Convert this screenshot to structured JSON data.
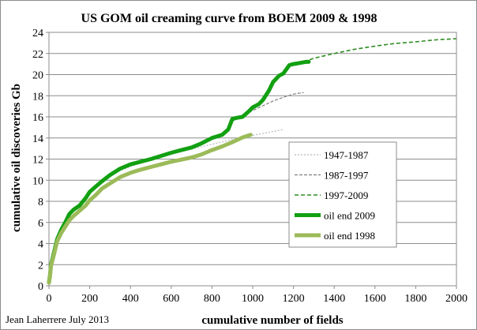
{
  "chart_data": {
    "type": "line",
    "title": "US GOM oil creaming curve from BOEM 2009 & 1998",
    "xlabel": "cumulative number of fields",
    "ylabel": "cumulative oil discoveries Gb",
    "xlim": [
      0,
      2000
    ],
    "ylim": [
      0,
      24
    ],
    "x_ticks": [
      0,
      200,
      400,
      600,
      800,
      1000,
      1200,
      1400,
      1600,
      1800,
      2000
    ],
    "y_ticks": [
      0,
      2,
      4,
      6,
      8,
      10,
      12,
      14,
      16,
      18,
      20,
      22,
      24
    ],
    "grid": "horizontal",
    "legend_position": "bottom-right",
    "credit": "Jean Laherrere July 2013",
    "series": [
      {
        "name": "1947-1987",
        "style": "dotted",
        "color": "#b8b8b8",
        "x": [
          300,
          400,
          500,
          600,
          700,
          800,
          900,
          1000,
          1100,
          1150
        ],
        "y": [
          10.5,
          11.3,
          11.95,
          12.5,
          12.95,
          13.4,
          13.85,
          14.25,
          14.6,
          14.8
        ]
      },
      {
        "name": "1987-1997",
        "style": "dashed",
        "color": "#7f7f7f",
        "x": [
          900,
          950,
          1000,
          1050,
          1100,
          1150,
          1200,
          1250
        ],
        "y": [
          15.6,
          16.1,
          16.6,
          17.05,
          17.5,
          17.85,
          18.15,
          18.3
        ]
      },
      {
        "name": "1997-2009",
        "style": "dashed",
        "color": "#2e8b22",
        "x": [
          1250,
          1300,
          1400,
          1500,
          1600,
          1700,
          1800,
          1900,
          2000
        ],
        "y": [
          21.2,
          21.55,
          22.0,
          22.4,
          22.7,
          22.95,
          23.1,
          23.3,
          23.4
        ]
      },
      {
        "name": "oil end 2009",
        "style": "thick",
        "color": "#12a012",
        "x": [
          0,
          5,
          10,
          20,
          40,
          60,
          80,
          100,
          120,
          150,
          180,
          200,
          230,
          260,
          300,
          350,
          400,
          450,
          500,
          550,
          600,
          650,
          700,
          750,
          800,
          850,
          880,
          900,
          920,
          950,
          980,
          1000,
          1030,
          1050,
          1080,
          1100,
          1130,
          1150,
          1180,
          1200,
          1230,
          1260,
          1275
        ],
        "y": [
          0.3,
          1.0,
          2.0,
          2.8,
          4.4,
          5.3,
          6.0,
          6.8,
          7.2,
          7.6,
          8.3,
          8.9,
          9.4,
          9.9,
          10.5,
          11.1,
          11.5,
          11.75,
          12.0,
          12.3,
          12.6,
          12.85,
          13.1,
          13.5,
          14.0,
          14.3,
          14.8,
          15.8,
          15.9,
          16.0,
          16.5,
          16.9,
          17.2,
          17.6,
          18.5,
          19.3,
          19.9,
          20.1,
          20.9,
          21.0,
          21.1,
          21.2,
          21.2
        ]
      },
      {
        "name": "oil end 1998",
        "style": "thick",
        "color": "#9bbb59",
        "x": [
          0,
          5,
          10,
          20,
          40,
          60,
          80,
          100,
          120,
          150,
          180,
          200,
          230,
          260,
          300,
          350,
          400,
          450,
          500,
          550,
          600,
          650,
          700,
          750,
          800,
          850,
          900,
          950,
          990
        ],
        "y": [
          0.3,
          0.9,
          1.9,
          2.6,
          4.2,
          5.0,
          5.6,
          6.2,
          6.6,
          7.1,
          7.6,
          8.1,
          8.6,
          9.2,
          9.7,
          10.3,
          10.7,
          11.0,
          11.25,
          11.5,
          11.75,
          11.95,
          12.15,
          12.45,
          12.85,
          13.2,
          13.6,
          14.05,
          14.3
        ]
      }
    ]
  }
}
